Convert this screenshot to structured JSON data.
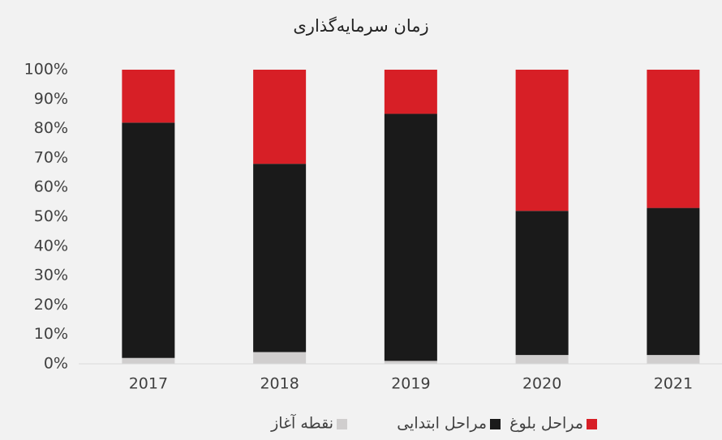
{
  "chart_data": {
    "type": "stacked_bar",
    "title": "زمان سرمایه‌گذاری",
    "categories": [
      "2017",
      "2018",
      "2019",
      "2020",
      "2021"
    ],
    "series": [
      {
        "name": "نقطه آغاز",
        "color": "#d0cece",
        "values": [
          2,
          4,
          1,
          3,
          3
        ]
      },
      {
        "name": "مراحل ابتدایی",
        "color": "#1a1a1a",
        "values": [
          80,
          64,
          84,
          49,
          50
        ]
      },
      {
        "name": "مراحل بلوغ",
        "color": "#d71f26",
        "values": [
          18,
          32,
          15,
          48,
          47
        ]
      }
    ],
    "ylim": [
      0,
      100
    ],
    "yticks": [
      {
        "value": 0,
        "label": "0%"
      },
      {
        "value": 10,
        "label": "10%"
      },
      {
        "value": 20,
        "label": "20%"
      },
      {
        "value": 30,
        "label": "30%"
      },
      {
        "value": 40,
        "label": "40%"
      },
      {
        "value": 50,
        "label": "50%"
      },
      {
        "value": 60,
        "label": "60%"
      },
      {
        "value": 70,
        "label": "70%"
      },
      {
        "value": 80,
        "label": "80%"
      },
      {
        "value": 90,
        "label": "90%"
      },
      {
        "value": 100,
        "label": "100%"
      }
    ],
    "legend": "bottom"
  }
}
